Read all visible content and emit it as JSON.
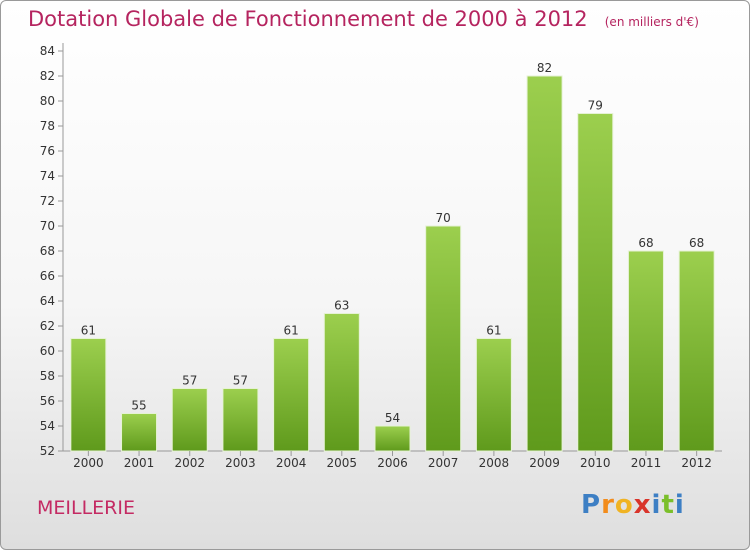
{
  "chart_data": {
    "type": "bar",
    "title": "Dotation Globale de Fonctionnement de 2000 à 2012",
    "unit_label": "(en milliers d'€)",
    "categories": [
      "2000",
      "2001",
      "2002",
      "2003",
      "2004",
      "2005",
      "2006",
      "2007",
      "2008",
      "2009",
      "2010",
      "2011",
      "2012"
    ],
    "values": [
      61,
      55,
      57,
      57,
      61,
      63,
      54,
      70,
      61,
      82,
      79,
      68,
      68
    ],
    "ylim": [
      52,
      84
    ],
    "yticks": [
      52,
      54,
      56,
      58,
      60,
      62,
      64,
      66,
      68,
      70,
      72,
      74,
      76,
      78,
      80,
      82,
      84
    ],
    "grid": false,
    "bar_color": "#7fbf2e",
    "title_color": "#b5245f"
  },
  "commune": "MEILLERIE",
  "logo": {
    "letters": [
      "P",
      "r",
      "o",
      "x",
      "i",
      "t",
      "i"
    ],
    "colors": [
      "#3d7fc4",
      "#f28c1c",
      "#f0b323",
      "#d9342b",
      "#3d7fc4",
      "#7bbf2a",
      "#3d7fc4"
    ]
  }
}
